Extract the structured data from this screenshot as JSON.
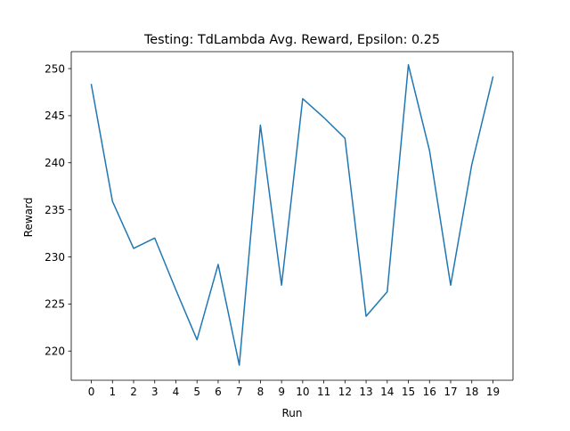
{
  "chart_data": {
    "type": "line",
    "title": "Testing: TdLambda Avg. Reward, Epsilon: 0.25",
    "xlabel": "Run",
    "ylabel": "Reward",
    "x": [
      0,
      1,
      2,
      3,
      4,
      5,
      6,
      7,
      8,
      9,
      10,
      11,
      12,
      13,
      14,
      15,
      16,
      17,
      18,
      19
    ],
    "x_tick_labels": [
      "0",
      "1",
      "2",
      "3",
      "4",
      "5",
      "6",
      "7",
      "8",
      "9",
      "10",
      "11",
      "12",
      "13",
      "14",
      "15",
      "16",
      "17",
      "18",
      "19"
    ],
    "y_tick_values": [
      220,
      225,
      230,
      235,
      240,
      245,
      250
    ],
    "y_tick_labels": [
      "220",
      "225",
      "230",
      "235",
      "240",
      "245",
      "250"
    ],
    "xlim": [
      -0.95,
      19.95
    ],
    "ylim": [
      216.9,
      251.8
    ],
    "grid": false,
    "legend": "none",
    "series": [
      {
        "color": "#1f77b4",
        "values": [
          248.3,
          235.9,
          230.9,
          232.0,
          226.5,
          221.2,
          229.2,
          218.5,
          244.0,
          227.0,
          246.8,
          244.8,
          242.6,
          223.7,
          226.3,
          250.4,
          241.3,
          227.0,
          239.8,
          249.1
        ]
      }
    ]
  }
}
